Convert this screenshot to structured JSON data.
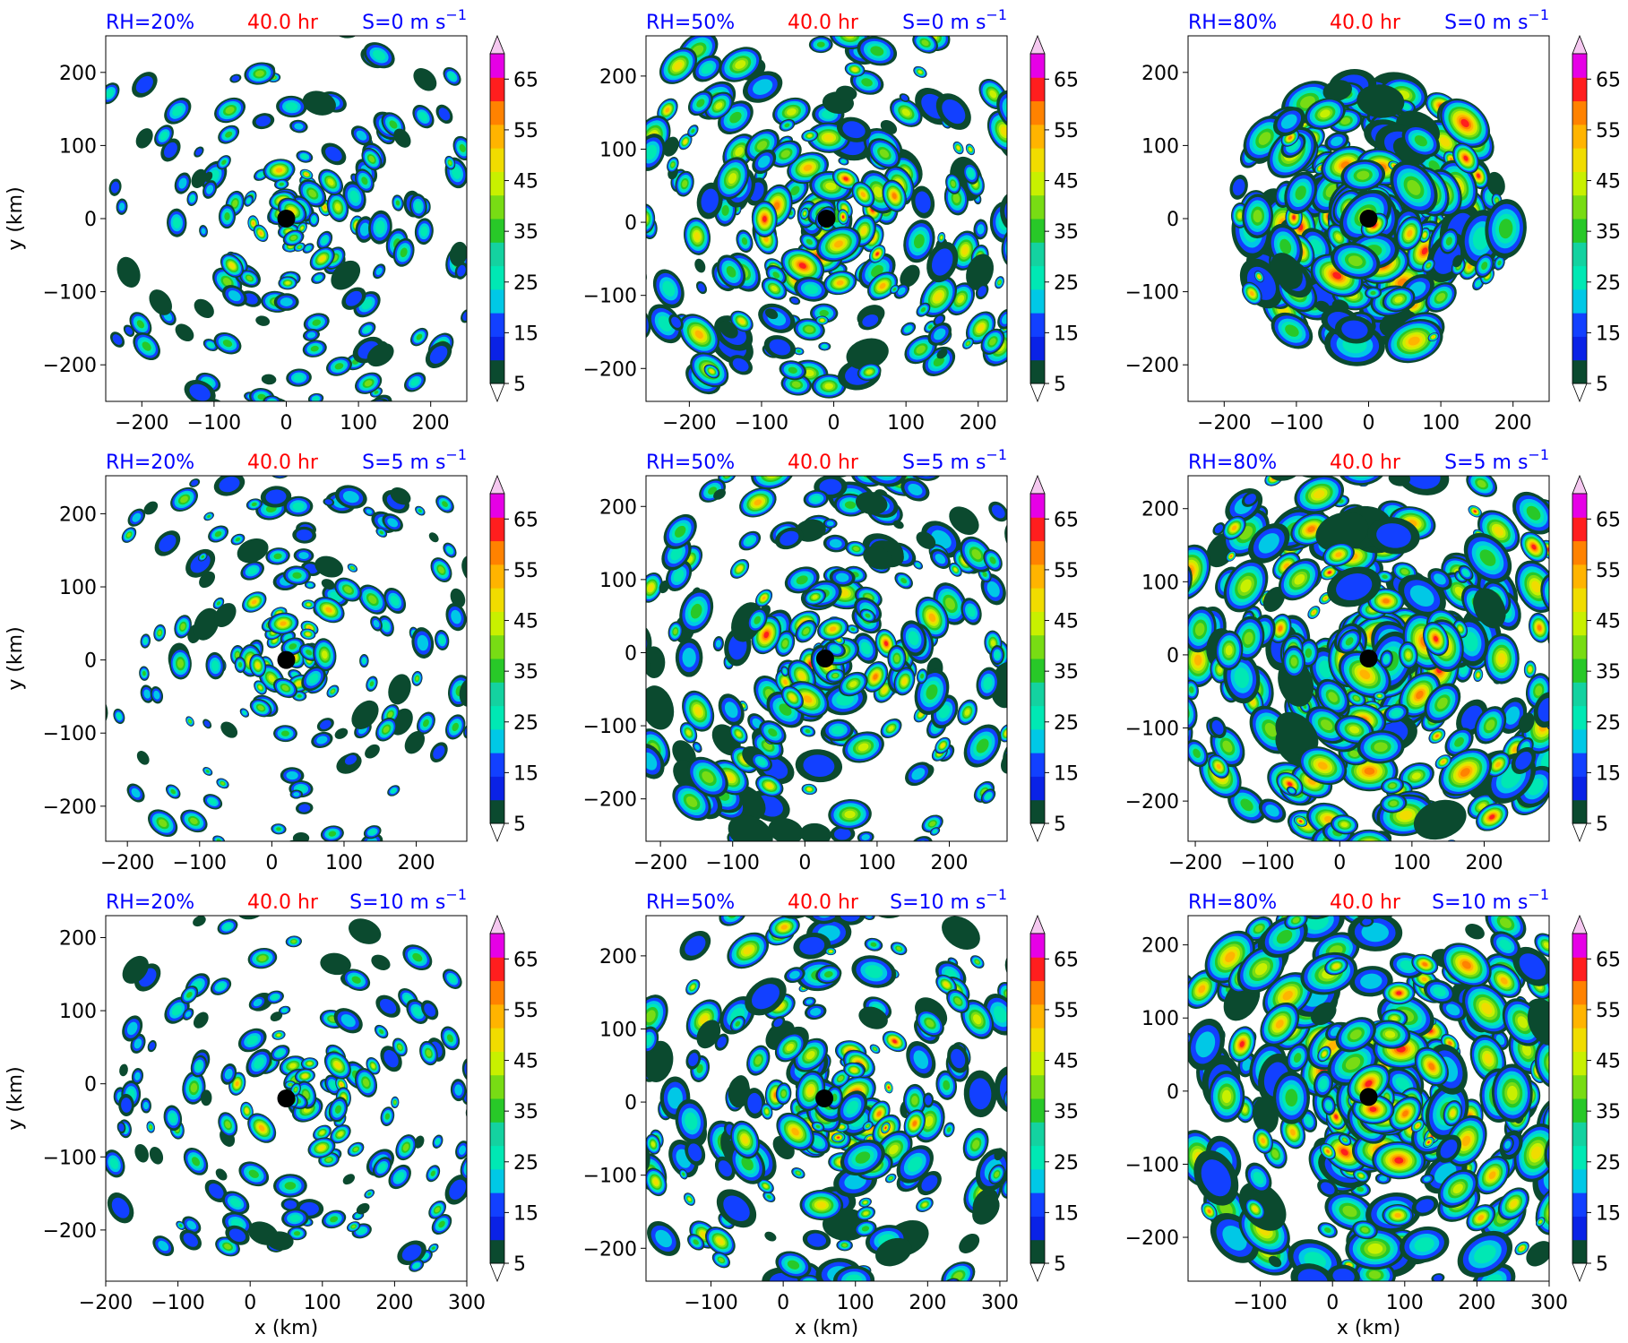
{
  "figure": {
    "rows": [
      {
        "shear": 0,
        "shear_label": "S=0 m s",
        "y_ticks": [
          "200",
          "100",
          "0",
          "−100",
          "−200"
        ],
        "x_ticks": [
          [
            "−200",
            "−100",
            "0",
            "100",
            "200"
          ],
          [
            "−200",
            "−100",
            "0",
            "100",
            "200"
          ],
          [
            "−200",
            "−100",
            "0",
            "100",
            "200"
          ]
        ]
      },
      {
        "shear": 5,
        "shear_label": "S=5 m s",
        "y_ticks": [
          "200",
          "100",
          "0",
          "−100",
          "−200"
        ],
        "x_ticks": [
          [
            "−200",
            "−100",
            "0",
            "100",
            "200"
          ],
          [
            "−200",
            "−100",
            "0",
            "100",
            "200"
          ],
          [
            "−200",
            "−100",
            "0",
            "100",
            "200"
          ]
        ]
      },
      {
        "shear": 10,
        "shear_label": "S=10 m s",
        "y_ticks": [
          "200",
          "100",
          "0",
          "−100",
          "−200"
        ],
        "x_ticks": [
          [
            "−200",
            "−100",
            "0",
            "100",
            "200",
            "300"
          ],
          [
            "−100",
            "0",
            "100",
            "200",
            "300"
          ],
          [
            "−100",
            "0",
            "100",
            "200",
            "300"
          ]
        ]
      }
    ],
    "columns": [
      {
        "rh_label": "RH=20%"
      },
      {
        "rh_label": "RH=50%"
      },
      {
        "rh_label": "RH=80%"
      }
    ],
    "time_label": "40.0 hr",
    "superscript": "−1",
    "ylabel": "y (km)",
    "xlabel": "x (km)",
    "colorbar": {
      "ticks": [
        "5",
        "15",
        "25",
        "35",
        "45",
        "55",
        "65"
      ],
      "colors": [
        "#0b4a2f",
        "#0a22e6",
        "#1240ff",
        "#00c8e6",
        "#00e8b4",
        "#14d2a0",
        "#28c828",
        "#78dc14",
        "#c8f000",
        "#f0dc00",
        "#ffb400",
        "#ff8200",
        "#ff1e1e",
        "#e600e6",
        "#d26ee6",
        "#f5c8f0"
      ]
    },
    "colors": {
      "title_blue": "#0000ff",
      "title_red": "#ff0000",
      "center_marker": "#000000"
    }
  },
  "chart_data": [
    {
      "type": "heatmap",
      "panel": "RH=20%, S=0",
      "title": [
        "RH=20%",
        "40.0 hr",
        "S=0 m s⁻¹"
      ],
      "xlim": [
        -250,
        250
      ],
      "ylim": [
        -250,
        250
      ],
      "center": [
        0,
        0
      ],
      "colorbar_range": [
        5,
        70
      ]
    },
    {
      "type": "heatmap",
      "panel": "RH=50%, S=0",
      "title": [
        "RH=50%",
        "40.0 hr",
        "S=0 m s⁻¹"
      ],
      "xlim": [
        -260,
        240
      ],
      "ylim": [
        -245,
        255
      ],
      "center": [
        -10,
        5
      ],
      "colorbar_range": [
        5,
        70
      ]
    },
    {
      "type": "heatmap",
      "panel": "RH=80%, S=0",
      "title": [
        "RH=80%",
        "40.0 hr",
        "S=0 m s⁻¹"
      ],
      "xlim": [
        -250,
        250
      ],
      "ylim": [
        -250,
        250
      ],
      "center": [
        0,
        0
      ],
      "colorbar_range": [
        5,
        70
      ]
    },
    {
      "type": "heatmap",
      "panel": "RH=20%, S=5",
      "title": [
        "RH=20%",
        "40.0 hr",
        "S=5 m s⁻¹"
      ],
      "xlim": [
        -230,
        270
      ],
      "ylim": [
        -248,
        252
      ],
      "center": [
        20,
        0
      ],
      "colorbar_range": [
        5,
        70
      ]
    },
    {
      "type": "heatmap",
      "panel": "RH=50%, S=5",
      "title": [
        "RH=50%",
        "40.0 hr",
        "S=5 m s⁻¹"
      ],
      "xlim": [
        -220,
        280
      ],
      "ylim": [
        -258,
        242
      ],
      "center": [
        28,
        -8
      ],
      "colorbar_range": [
        5,
        70
      ]
    },
    {
      "type": "heatmap",
      "panel": "RH=80%, S=5",
      "title": [
        "RH=80%",
        "40.0 hr",
        "S=5 m s⁻¹"
      ],
      "xlim": [
        -210,
        290
      ],
      "ylim": [
        -255,
        245
      ],
      "center": [
        40,
        -5
      ],
      "colorbar_range": [
        5,
        70
      ]
    },
    {
      "type": "heatmap",
      "panel": "RH=20%, S=10",
      "title": [
        "RH=20%",
        "40.0 hr",
        "S=10 m s⁻¹"
      ],
      "xlim": [
        -200,
        300
      ],
      "ylim": [
        -270,
        230
      ],
      "center": [
        50,
        -20
      ],
      "colorbar_range": [
        5,
        70
      ]
    },
    {
      "type": "heatmap",
      "panel": "RH=50%, S=10",
      "title": [
        "RH=50%",
        "40.0 hr",
        "S=10 m s⁻¹"
      ],
      "xlim": [
        -190,
        310
      ],
      "ylim": [
        -245,
        255
      ],
      "center": [
        57,
        5
      ],
      "colorbar_range": [
        5,
        70
      ]
    },
    {
      "type": "heatmap",
      "panel": "RH=80%, S=10",
      "title": [
        "RH=80%",
        "40.0 hr",
        "S=10 m s⁻¹"
      ],
      "xlim": [
        -200,
        300
      ],
      "ylim": [
        -260,
        240
      ],
      "center": [
        50,
        -8
      ],
      "colorbar_range": [
        5,
        70
      ]
    }
  ]
}
